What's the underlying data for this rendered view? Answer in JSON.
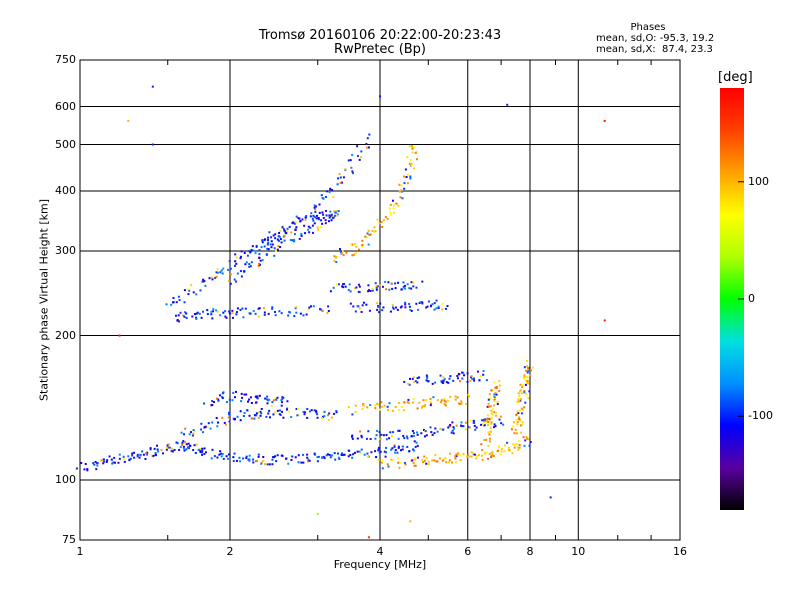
{
  "title_line1": "Tromsø 20160106 20:22:00-20:23:43",
  "title_line2": "RwPretec (Bp)",
  "phases": {
    "title": "Phases",
    "o_line": "mean, sd,O: -95.3, 19.2",
    "x_line": "mean, sd,X:  87.4, 23.3"
  },
  "colorbar": {
    "unit": "[deg]",
    "ticks": [
      100,
      0,
      -100
    ],
    "range": [
      -180,
      180
    ],
    "colors": [
      "#000000",
      "#5a00a0",
      "#0000ff",
      "#0090ff",
      "#00e0e0",
      "#00ff00",
      "#b0ff00",
      "#ffff00",
      "#ffa000",
      "#ff4000",
      "#ff0000"
    ]
  },
  "chart_data": {
    "type": "scatter",
    "title": "Tromsø 20160106 20:22:00-20:23:43",
    "subtitle": "RwPretec (Bp)",
    "xlabel": "Frequency [MHz]",
    "ylabel": "Stationary phase Virtual Height [km]",
    "x_scale": "log",
    "y_scale": "log",
    "xlim": [
      1,
      16
    ],
    "ylim": [
      75,
      750
    ],
    "x_ticks": [
      1,
      2,
      4,
      6,
      8,
      10,
      16
    ],
    "y_ticks": [
      75,
      100,
      200,
      300,
      400,
      500,
      600,
      750
    ],
    "x_grid": [
      2,
      4,
      6,
      8,
      10
    ],
    "y_grid": [
      100,
      200,
      300,
      400,
      500,
      600
    ],
    "color_variable": "phase [deg]",
    "traces": [
      {
        "mode": "O",
        "phase": -100,
        "x": [
          1.0,
          1.1,
          1.2,
          1.3,
          1.4,
          1.5,
          1.6,
          1.7,
          1.8,
          2.0,
          2.2,
          2.4,
          2.7,
          3.0,
          3.3,
          3.6,
          4.0,
          4.4,
          4.8
        ],
        "y": [
          107,
          108,
          110,
          112,
          114,
          116,
          118,
          117,
          114,
          112,
          111,
          110,
          110,
          111,
          112,
          113,
          114,
          116,
          118
        ]
      },
      {
        "mode": "O",
        "phase": -100,
        "x": [
          1.6,
          1.8,
          2.0,
          2.2,
          2.4,
          2.7,
          3.0,
          3.3
        ],
        "y": [
          125,
          130,
          135,
          137,
          138,
          138,
          137,
          136
        ]
      },
      {
        "mode": "O",
        "phase": -100,
        "x": [
          1.8,
          2.0,
          2.2,
          2.4,
          2.6
        ],
        "y": [
          145,
          150,
          148,
          146,
          145
        ]
      },
      {
        "mode": "O",
        "phase": -100,
        "x": [
          3.5,
          4.0,
          4.5,
          5.0,
          5.5,
          6.0,
          6.5,
          7.0
        ],
        "y": [
          123,
          124,
          125,
          126,
          128,
          130,
          131,
          133
        ]
      },
      {
        "mode": "O",
        "phase": -100,
        "x": [
          4.5,
          5.0,
          5.5,
          6.0,
          6.5
        ],
        "y": [
          160,
          162,
          163,
          164,
          165
        ]
      },
      {
        "mode": "O",
        "phase": -100,
        "x": [
          1.55,
          1.7,
          1.9,
          2.1,
          2.4,
          2.8,
          3.2
        ],
        "y": [
          218,
          221,
          222,
          223,
          224,
          225,
          226
        ]
      },
      {
        "mode": "O",
        "phase": -100,
        "x": [
          3.2,
          3.6,
          4.0,
          4.4,
          4.8
        ],
        "y": [
          250,
          252,
          254,
          255,
          255
        ]
      },
      {
        "mode": "O",
        "phase": -100,
        "x": [
          3.5,
          4.0,
          4.5,
          5.0,
          5.4
        ],
        "y": [
          228,
          229,
          230,
          231,
          232
        ]
      },
      {
        "mode": "O",
        "phase": -100,
        "x": [
          1.5,
          1.7,
          1.9,
          2.1,
          2.3,
          2.5,
          2.8,
          3.1,
          3.3
        ],
        "y": [
          230,
          250,
          270,
          290,
          310,
          330,
          345,
          355,
          360
        ]
      },
      {
        "mode": "O",
        "phase": -100,
        "x": [
          2.0,
          2.2,
          2.4,
          2.7,
          3.0,
          3.3
        ],
        "y": [
          260,
          280,
          300,
          320,
          340,
          360
        ]
      },
      {
        "mode": "O",
        "phase": -100,
        "x": [
          2.3,
          2.6,
          2.9,
          3.2,
          3.5,
          3.8
        ],
        "y": [
          300,
          330,
          360,
          400,
          450,
          520
        ]
      },
      {
        "mode": "X",
        "phase": 100,
        "x": [
          3.2,
          3.5,
          3.8,
          4.1,
          4.4,
          4.6,
          4.7
        ],
        "y": [
          290,
          300,
          320,
          350,
          400,
          450,
          500
        ]
      },
      {
        "mode": "X",
        "phase": 100,
        "x": [
          4.0,
          4.5,
          5.0,
          5.5,
          6.0,
          6.5,
          7.0,
          7.5,
          8.0
        ],
        "y": [
          108,
          109,
          110,
          111,
          112,
          113,
          115,
          118,
          122
        ]
      },
      {
        "mode": "X",
        "phase": 100,
        "x": [
          3.5,
          4.0,
          4.5,
          5.0,
          5.5,
          6.0
        ],
        "y": [
          140,
          142,
          143,
          145,
          146,
          147
        ]
      },
      {
        "mode": "X",
        "phase": 100,
        "x": [
          7.5,
          7.6,
          7.7,
          7.8,
          7.9,
          8.0
        ],
        "y": [
          125,
          135,
          145,
          155,
          165,
          175
        ]
      },
      {
        "mode": "X",
        "phase": 100,
        "x": [
          6.5,
          6.6,
          6.7,
          6.8,
          6.9
        ],
        "y": [
          120,
          130,
          140,
          150,
          160
        ]
      }
    ],
    "outliers": [
      {
        "x": 1.4,
        "y": 660,
        "phase": -100
      },
      {
        "x": 1.4,
        "y": 500,
        "phase": -100
      },
      {
        "x": 1.25,
        "y": 560,
        "phase": 100
      },
      {
        "x": 4.0,
        "y": 630,
        "phase": -100
      },
      {
        "x": 7.2,
        "y": 605,
        "phase": -100
      },
      {
        "x": 11.3,
        "y": 560,
        "phase": 170
      },
      {
        "x": 11.3,
        "y": 215,
        "phase": 170
      },
      {
        "x": 1.2,
        "y": 200,
        "phase": 170
      },
      {
        "x": 3.8,
        "y": 76,
        "phase": 150
      },
      {
        "x": 4.6,
        "y": 82,
        "phase": 100
      },
      {
        "x": 3.0,
        "y": 85,
        "phase": 30
      },
      {
        "x": 8.8,
        "y": 92,
        "phase": -100
      }
    ]
  }
}
